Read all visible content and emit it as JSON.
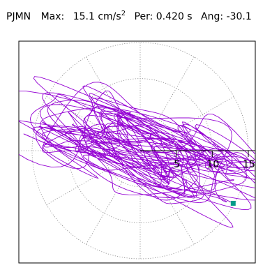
{
  "header": {
    "station": "PJMN",
    "max_label": "Max:",
    "max_value": "15.1",
    "max_unit": "cm/s",
    "max_unit_power": "2",
    "per_label": "Per:",
    "per_value": "0.420 s",
    "ang_label": "Ang:",
    "ang_value": "-30.1"
  },
  "chart_data": {
    "type": "scatter",
    "subtype": "polar particle-motion orbit",
    "radial_range": [
      0,
      15
    ],
    "radial_ticks": [
      5,
      10,
      15
    ],
    "radial_tick_labels": [
      "5",
      "10",
      "15"
    ],
    "angular_grid_step_deg": 30,
    "grid": true,
    "trace_color": "#9400D3",
    "marker_color": "#009B8A",
    "max_amplitude": 15.1,
    "principal_angle_deg": -30.1,
    "end_point": {
      "x": 12.9,
      "y": -7.3
    }
  }
}
